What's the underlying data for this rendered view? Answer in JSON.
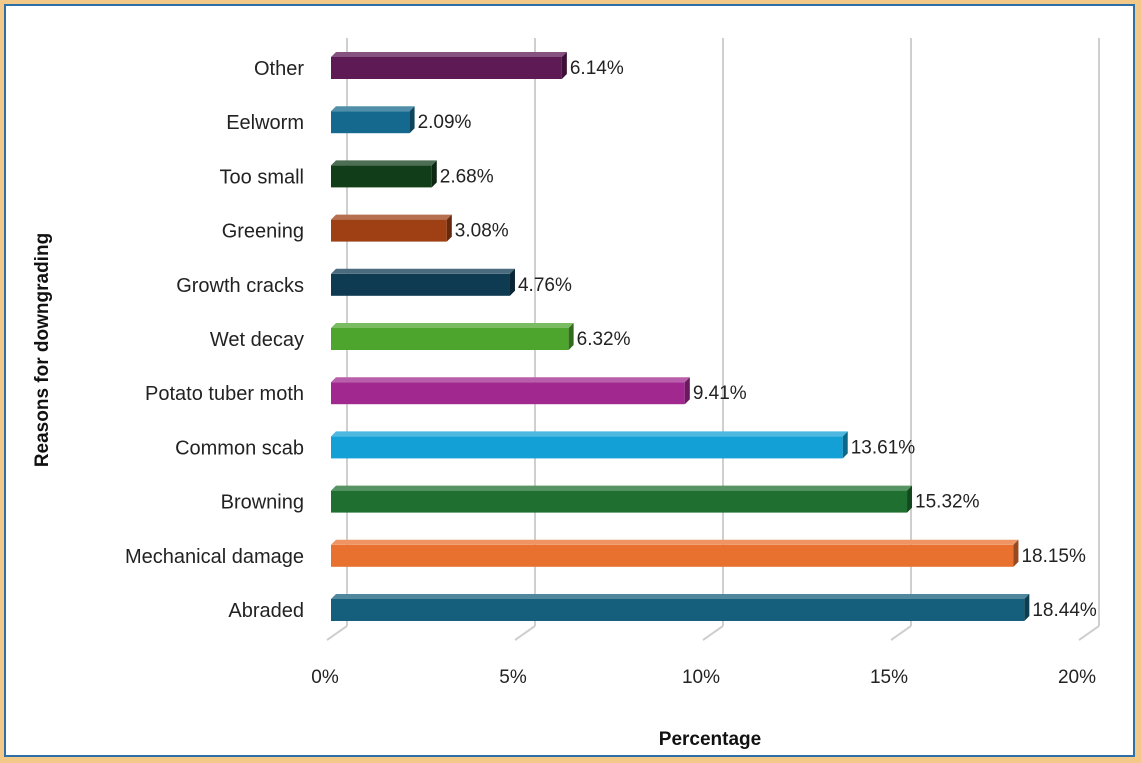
{
  "chart_data": {
    "type": "bar",
    "orientation": "horizontal",
    "categories": [
      "Abraded",
      "Mechanical damage",
      "Browning",
      "Common scab",
      "Potato tuber moth",
      "Wet decay",
      "Growth cracks",
      "Greening",
      "Too small",
      "Eelworm",
      "Other"
    ],
    "values": [
      18.44,
      18.15,
      15.32,
      13.61,
      9.41,
      6.32,
      4.76,
      3.08,
      2.68,
      2.09,
      6.14
    ],
    "value_labels": [
      "18.44%",
      "18.15%",
      "15.32%",
      "13.61%",
      "9.41%",
      "6.32%",
      "4.76%",
      "3.08%",
      "2.68%",
      "2.09%",
      "6.14%"
    ],
    "colors": [
      "#155f7d",
      "#e8712f",
      "#1f7030",
      "#13a0d6",
      "#a0288f",
      "#4ea52d",
      "#0e3a52",
      "#9e3f14",
      "#123d19",
      "#15688e",
      "#5e1a55"
    ],
    "xlabel": "Percentage",
    "ylabel": "Reasons for downgrading",
    "xlim": [
      0,
      20
    ],
    "xticks": [
      "0%",
      "5%",
      "10%",
      "15%",
      "20%"
    ],
    "grid": true,
    "legend": "none"
  }
}
